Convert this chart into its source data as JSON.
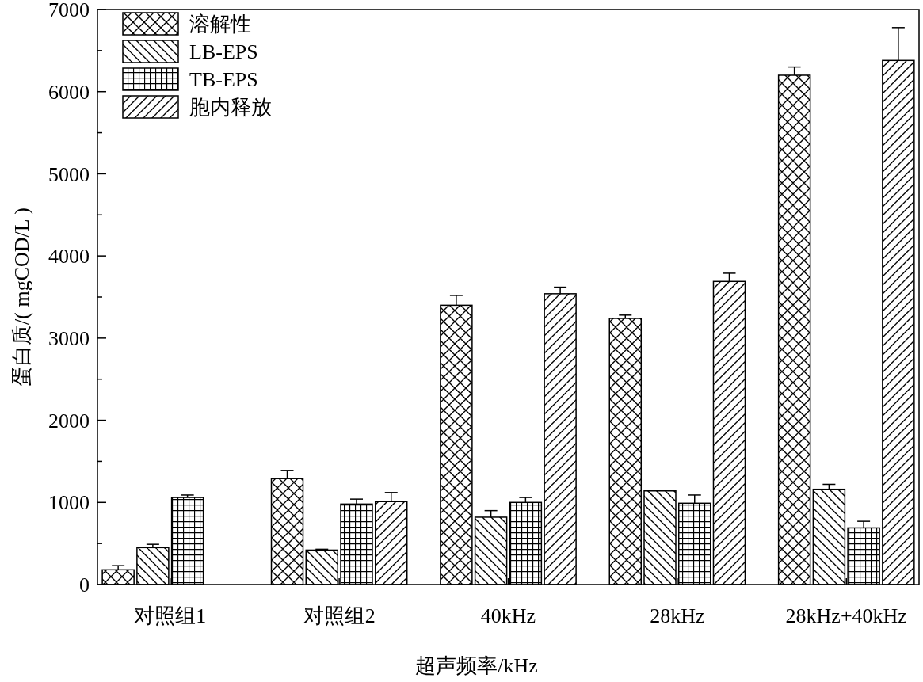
{
  "chart_data": {
    "type": "bar",
    "xlabel": "超声频率/kHz",
    "ylabel": "蛋白质/( mgCOD/L )",
    "categories": [
      "对照组1",
      "对照组2",
      "40kHz",
      "28kHz",
      "28kHz+40kHz"
    ],
    "series": [
      {
        "name": "溶解性",
        "color": "#000000",
        "values": [
          180,
          1290,
          3400,
          3240,
          6200
        ],
        "errors": [
          50,
          100,
          120,
          40,
          100
        ]
      },
      {
        "name": "LB-EPS",
        "color": "#000000",
        "values": [
          450,
          420,
          820,
          1140,
          1160
        ],
        "errors": [
          40,
          10,
          80,
          10,
          60
        ]
      },
      {
        "name": "TB-EPS",
        "color": "#000000",
        "values": [
          1060,
          980,
          1000,
          990,
          690
        ],
        "errors": [
          30,
          60,
          60,
          100,
          80
        ]
      },
      {
        "name": "胞内释放",
        "color": "#000000",
        "values": [
          null,
          1010,
          3540,
          3690,
          6380
        ],
        "errors": [
          null,
          110,
          80,
          100,
          400
        ]
      }
    ],
    "ylim": [
      0,
      7000
    ],
    "yticks": [
      0,
      {
        "value": 500,
        "label": null
      },
      1000,
      {
        "value": 1500,
        "label": null
      },
      2000,
      {
        "value": 2500,
        "label": null
      },
      3000,
      {
        "value": 3500,
        "label": null
      },
      4000,
      {
        "value": 4500,
        "label": null
      },
      5000,
      {
        "value": 5500,
        "label": null
      },
      6000,
      {
        "value": 6500,
        "label": null
      },
      7000
    ],
    "legend": "top left",
    "grid": false
  }
}
